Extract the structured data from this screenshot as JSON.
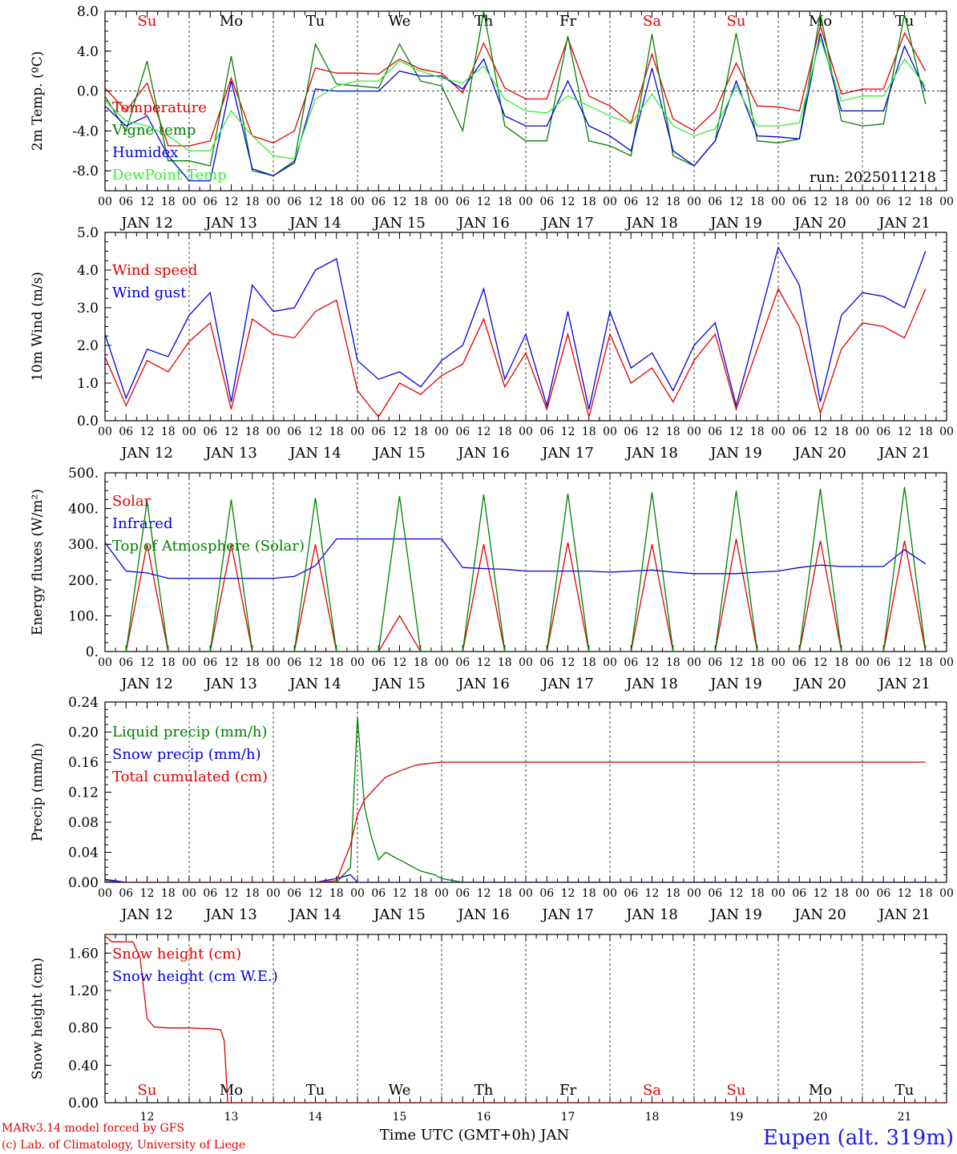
{
  "meta": {
    "run_label": "run: 2025011218",
    "footer_model": "MARv3.14 model forced by GFS",
    "footer_lab": "(c) Lab. of Climatology, University of Liege",
    "xaxis_title": "Time UTC (GMT+0h) JAN",
    "station": "Eupen (alt. 319m)"
  },
  "days": {
    "weekdays": [
      "Su",
      "Mo",
      "Tu",
      "We",
      "Th",
      "Fr",
      "Sa",
      "Su",
      "Mo",
      "Tu"
    ],
    "weekday_colors": [
      "#e00000",
      "#000000",
      "#000000",
      "#000000",
      "#000000",
      "#000000",
      "#e00000",
      "#e00000",
      "#000000",
      "#000000"
    ],
    "date_labels": [
      "JAN 12",
      "JAN 13",
      "JAN 14",
      "JAN 15",
      "JAN 16",
      "JAN 17",
      "JAN 18",
      "JAN 19",
      "JAN 20",
      "JAN 21"
    ],
    "day_numbers": [
      "12",
      "13",
      "14",
      "15",
      "16",
      "17",
      "18",
      "19",
      "20",
      "21"
    ],
    "hour_ticks": [
      "00",
      "06",
      "12",
      "18"
    ]
  },
  "chart_data": [
    {
      "type": "line",
      "ylabel": "2m Temp. (ºC)",
      "ylim": [
        -10,
        8
      ],
      "yticks": [
        "-8.0",
        "-4.0",
        "0.0",
        "4.0",
        "8.0"
      ],
      "ytick_values": [
        -8,
        -4,
        0,
        4,
        8
      ],
      "zero_line": true,
      "x_hours": [
        0,
        6,
        12,
        18,
        24,
        30,
        36,
        42,
        48,
        54,
        60,
        66,
        72,
        78,
        84,
        90,
        96,
        102,
        108,
        114,
        120,
        126,
        132,
        138,
        144,
        150,
        156,
        162,
        168,
        174,
        180,
        186,
        192,
        198,
        204,
        210,
        216,
        222,
        228,
        234
      ],
      "series": [
        {
          "name": "Temperature",
          "color": "#e00000",
          "values": [
            0.3,
            -2.0,
            0.8,
            -5.5,
            -5.5,
            -5.0,
            1.3,
            -4.5,
            -5.2,
            -4.0,
            2.3,
            1.8,
            1.8,
            1.7,
            3.2,
            2.2,
            1.8,
            -0.2,
            4.8,
            0.3,
            -0.8,
            -0.8,
            5.3,
            -0.5,
            -1.5,
            -3.2,
            3.7,
            -2.8,
            -4.0,
            -2.0,
            2.8,
            -1.5,
            -1.6,
            -2.0,
            6.5,
            -0.3,
            0.2,
            0.2,
            5.8,
            2.0
          ]
        },
        {
          "name": "Vigne temp",
          "color": "#008000",
          "values": [
            -0.5,
            -4.0,
            3.0,
            -7.0,
            -7.0,
            -7.5,
            3.5,
            -8.0,
            -8.5,
            -7.0,
            4.7,
            0.7,
            0.5,
            0.3,
            4.7,
            1.0,
            0.5,
            -4.0,
            8.0,
            -3.5,
            -5.0,
            -5.0,
            5.5,
            -5.0,
            -5.5,
            -6.5,
            5.7,
            -6.5,
            -7.5,
            -5.0,
            5.8,
            -5.0,
            -5.2,
            -4.8,
            7.8,
            -3.0,
            -3.5,
            -3.3,
            7.7,
            -1.3
          ]
        },
        {
          "name": "Humidex",
          "color": "#0000dd",
          "values": [
            -1.5,
            -3.5,
            -2.5,
            -6.5,
            -9.0,
            -9.0,
            1.0,
            -7.8,
            -8.5,
            -7.2,
            0.2,
            0.0,
            0.0,
            0.0,
            2.0,
            1.5,
            1.5,
            0.2,
            3.2,
            -2.5,
            -3.5,
            -3.5,
            1.0,
            -3.5,
            -4.5,
            -6.0,
            2.3,
            -6.0,
            -7.5,
            -5.0,
            1.0,
            -4.5,
            -4.6,
            -4.8,
            5.8,
            -2.0,
            -2.0,
            -2.0,
            4.5,
            0.0
          ]
        },
        {
          "name": "DewPoint Temp",
          "color": "#33ee33",
          "values": [
            -1.0,
            -3.0,
            -3.5,
            -4.5,
            -6.0,
            -6.0,
            -2.0,
            -4.5,
            -6.5,
            -6.8,
            -0.8,
            0.5,
            1.0,
            1.0,
            3.0,
            2.0,
            1.3,
            0.8,
            2.5,
            -0.8,
            -2.0,
            -2.2,
            -0.5,
            -1.5,
            -2.5,
            -3.3,
            -0.3,
            -3.5,
            -4.5,
            -3.8,
            0.5,
            -3.5,
            -3.5,
            -3.2,
            5.2,
            -1.0,
            -0.5,
            -0.5,
            3.2,
            0.5
          ]
        }
      ],
      "legend_placement": "top-left",
      "grid": true
    },
    {
      "type": "line",
      "ylabel": "10m Wind (m/s)",
      "ylim": [
        0,
        5
      ],
      "yticks": [
        "0.0",
        "1.0",
        "2.0",
        "3.0",
        "4.0",
        "5.0"
      ],
      "ytick_values": [
        0,
        1,
        2,
        3,
        4,
        5
      ],
      "x_hours": [
        0,
        6,
        12,
        18,
        24,
        30,
        36,
        42,
        48,
        54,
        60,
        66,
        72,
        78,
        84,
        90,
        96,
        102,
        108,
        114,
        120,
        126,
        132,
        138,
        144,
        150,
        156,
        162,
        168,
        174,
        180,
        186,
        192,
        198,
        204,
        210,
        216,
        222,
        228,
        234
      ],
      "series": [
        {
          "name": "Wind speed",
          "color": "#e00000",
          "values": [
            1.7,
            0.4,
            1.6,
            1.3,
            2.1,
            2.6,
            0.3,
            2.7,
            2.3,
            2.2,
            2.9,
            3.2,
            0.8,
            0.1,
            1.0,
            0.7,
            1.2,
            1.5,
            2.7,
            0.9,
            1.8,
            0.3,
            2.3,
            0.1,
            2.3,
            1.0,
            1.4,
            0.5,
            1.6,
            2.3,
            0.3,
            1.9,
            3.5,
            2.5,
            0.2,
            1.9,
            2.6,
            2.5,
            2.2,
            3.5
          ]
        },
        {
          "name": "Wind gust",
          "color": "#0000dd",
          "values": [
            2.3,
            0.6,
            1.9,
            1.7,
            2.8,
            3.4,
            0.5,
            3.6,
            2.9,
            3.0,
            4.0,
            4.3,
            1.6,
            1.1,
            1.3,
            0.9,
            1.6,
            2.0,
            3.5,
            1.1,
            2.3,
            0.4,
            2.9,
            0.3,
            2.9,
            1.4,
            1.8,
            0.8,
            2.0,
            2.6,
            0.4,
            2.5,
            4.6,
            3.6,
            0.5,
            2.8,
            3.4,
            3.3,
            3.0,
            4.5
          ]
        }
      ],
      "legend_placement": "top-left",
      "grid": true
    },
    {
      "type": "line",
      "ylabel": "Energy fluxes (W/m²)",
      "ylim": [
        0,
        500
      ],
      "yticks": [
        "0.",
        "100.",
        "200.",
        "300.",
        "400.",
        "500."
      ],
      "ytick_values": [
        0,
        100,
        200,
        300,
        400,
        500
      ],
      "x_hours": [
        0,
        6,
        12,
        18,
        24,
        30,
        36,
        42,
        48,
        54,
        60,
        66,
        72,
        78,
        84,
        90,
        96,
        102,
        108,
        114,
        120,
        126,
        132,
        138,
        144,
        150,
        156,
        162,
        168,
        174,
        180,
        186,
        192,
        198,
        204,
        210,
        216,
        222,
        228,
        234
      ],
      "series": [
        {
          "name": "Solar",
          "color": "#e00000",
          "values": [
            0,
            0,
            300,
            0,
            0,
            0,
            300,
            0,
            0,
            0,
            300,
            0,
            0,
            0,
            100,
            0,
            0,
            0,
            300,
            0,
            0,
            0,
            305,
            0,
            0,
            0,
            300,
            0,
            0,
            0,
            315,
            0,
            0,
            0,
            310,
            0,
            0,
            0,
            310,
            0
          ]
        },
        {
          "name": "Infrared",
          "color": "#0000dd",
          "values": [
            305,
            225,
            220,
            205,
            205,
            205,
            205,
            205,
            205,
            210,
            240,
            315,
            315,
            315,
            315,
            315,
            315,
            235,
            232,
            230,
            225,
            225,
            225,
            225,
            222,
            225,
            228,
            222,
            218,
            218,
            218,
            222,
            225,
            235,
            242,
            238,
            238,
            238,
            285,
            245
          ]
        },
        {
          "name": "Top of Atmosphere (Solar)",
          "color": "#008000",
          "values": [
            0,
            0,
            420,
            0,
            0,
            0,
            425,
            0,
            0,
            0,
            430,
            0,
            0,
            0,
            435,
            0,
            0,
            0,
            440,
            0,
            0,
            0,
            442,
            0,
            0,
            0,
            446,
            0,
            0,
            0,
            450,
            0,
            0,
            0,
            455,
            0,
            0,
            0,
            460,
            0
          ]
        }
      ],
      "legend_placement": "top-left",
      "grid": true
    },
    {
      "type": "line",
      "ylabel": "Precip (mm/h)",
      "ylim": [
        0,
        0.24
      ],
      "yticks": [
        "0.00",
        "0.04",
        "0.08",
        "0.12",
        "0.16",
        "0.20",
        "0.24"
      ],
      "ytick_values": [
        0,
        0.04,
        0.08,
        0.12,
        0.16,
        0.2,
        0.24
      ],
      "x_hours": [
        0,
        6,
        12,
        18,
        24,
        30,
        36,
        42,
        48,
        54,
        60,
        66,
        70,
        72,
        74,
        76,
        78,
        80,
        84,
        88,
        90,
        94,
        96,
        102,
        108,
        114,
        120,
        126,
        132,
        138,
        144,
        150,
        156,
        162,
        168,
        174,
        180,
        186,
        192,
        198,
        204,
        210,
        216,
        222,
        228,
        234
      ],
      "series": [
        {
          "name": "Liquid precip (mm/h)",
          "color": "#008000",
          "values": [
            0.002,
            0,
            0,
            0,
            0,
            0,
            0,
            0,
            0,
            0,
            0,
            0,
            0.02,
            0.22,
            0.1,
            0.06,
            0.03,
            0.04,
            0.03,
            0.02,
            0.015,
            0.01,
            0.005,
            0,
            0,
            0,
            0,
            0,
            0,
            0,
            0,
            0,
            0,
            0,
            0,
            0,
            0,
            0,
            0,
            0,
            0,
            0,
            0,
            0,
            0,
            0
          ]
        },
        {
          "name": "Snow precip (mm/h)",
          "color": "#0000dd",
          "values": [
            0.004,
            0,
            0,
            0,
            0,
            0,
            0,
            0,
            0,
            0,
            0,
            0.005,
            0.01,
            0,
            0,
            0,
            0,
            0,
            0,
            0,
            0,
            0,
            0,
            0,
            0,
            0,
            0,
            0,
            0,
            0,
            0,
            0,
            0,
            0,
            0,
            0,
            0,
            0,
            0,
            0,
            0,
            0,
            0,
            0,
            0,
            0
          ]
        },
        {
          "name": "Total cumulated (cm)",
          "color": "#e00000",
          "values": [
            0,
            0,
            0,
            0,
            0,
            0,
            0,
            0,
            0,
            0,
            0,
            0.002,
            0.05,
            0.09,
            0.11,
            0.12,
            0.13,
            0.14,
            0.148,
            0.155,
            0.157,
            0.159,
            0.16,
            0.16,
            0.16,
            0.16,
            0.16,
            0.16,
            0.16,
            0.16,
            0.16,
            0.16,
            0.16,
            0.16,
            0.16,
            0.16,
            0.16,
            0.16,
            0.16,
            0.16,
            0.16,
            0.16,
            0.16,
            0.16,
            0.16,
            0.16
          ]
        }
      ],
      "legend_placement": "top-left",
      "grid": true
    },
    {
      "type": "line",
      "ylabel": "Snow height (cm)",
      "ylim": [
        0,
        1.8
      ],
      "yticks": [
        "0.00",
        "0.40",
        "0.80",
        "1.20",
        "1.60"
      ],
      "ytick_values": [
        0,
        0.4,
        0.8,
        1.2,
        1.6
      ],
      "x_hours": [
        0,
        2,
        6,
        8,
        10,
        12,
        14,
        18,
        24,
        30,
        36,
        30.5,
        33,
        34,
        35,
        36,
        48,
        240
      ],
      "series": [
        {
          "name": "Snow height (cm)",
          "color": "#e00000",
          "values": [
            1.78,
            1.72,
            1.72,
            1.72,
            1.55,
            0.9,
            0.81,
            0.8,
            0.8,
            0.79,
            0.0,
            0.79,
            0.78,
            0.66,
            0.0,
            0.0,
            0.0,
            0.0
          ]
        },
        {
          "name": "Snow height (cm W.E.)",
          "color": "#0000dd",
          "values": []
        }
      ],
      "legend_placement": "top-left",
      "grid": true
    }
  ],
  "colors": {
    "axis": "#000000",
    "grid": "#555555",
    "station": "#1a1aee"
  }
}
